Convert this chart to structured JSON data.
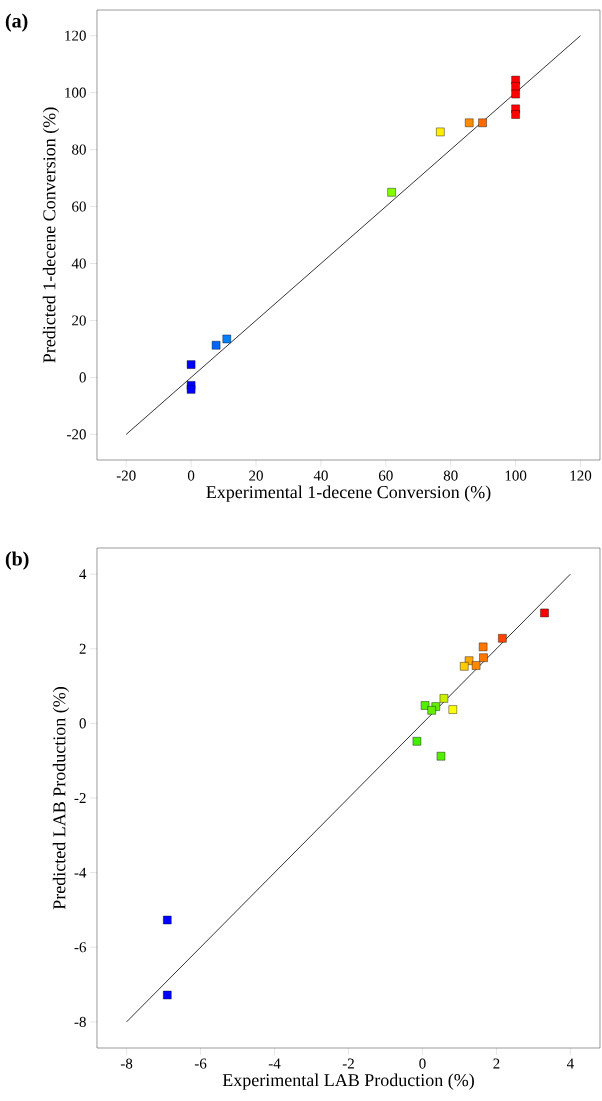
{
  "chart_data": [
    {
      "type": "scatter",
      "annotations": [
        "(a)"
      ],
      "xlabel": "Experimental 1-decene Conversion (%)",
      "ylabel": "Predicted 1-decene Conversion (%)",
      "xlim": [
        -29,
        126
      ],
      "ylim": [
        -29,
        129
      ],
      "xticks": [
        -20,
        0,
        20,
        40,
        60,
        80,
        100,
        120
      ],
      "yticks": [
        -20,
        0,
        20,
        40,
        60,
        80,
        100,
        120
      ],
      "series": [
        {
          "type": "scatter",
          "marker": "square",
          "x": [
            100,
            100,
            100,
            100,
            100,
            85.7,
            89.8,
            76.8,
            61.8,
            0,
            0,
            0,
            7.7,
            11
          ],
          "values": [
            104.4,
            102.2,
            99.5,
            94.3,
            92.3,
            89.4,
            89.4,
            86.2,
            65.0,
            4.5,
            -2.8,
            -4.2,
            11.3,
            13.5
          ],
          "colors": [
            "#ff0000",
            "#ff0000",
            "#ff0000",
            "#ff0000",
            "#ff0000",
            "#ff8c00",
            "#ff6a00",
            "#ffee00",
            "#80ff00",
            "#0000ff",
            "#0000ff",
            "#0000ff",
            "#0066ff",
            "#0080ff"
          ]
        },
        {
          "type": "line",
          "marker": "none",
          "color": "#000000",
          "x": [
            -20,
            120
          ],
          "values": [
            -20,
            120
          ]
        }
      ]
    },
    {
      "type": "scatter",
      "annotations": [
        "(b)"
      ],
      "xlabel": "Experimental LAB Production (%)",
      "ylabel": "Predicted LAB Production (%)",
      "xlim": [
        -8.8,
        4.8
      ],
      "ylim": [
        -8.7,
        4.7
      ],
      "xticks": [
        -8,
        -6,
        -4,
        -2,
        0,
        2,
        4
      ],
      "yticks": [
        -8,
        -6,
        -4,
        -2,
        0,
        2,
        4
      ],
      "series": [
        {
          "type": "scatter",
          "marker": "square",
          "x": [
            3.3,
            2.16,
            1.64,
            1.65,
            1.26,
            1.45,
            1.13,
            0.58,
            0.07,
            0.36,
            0.25,
            0.82,
            -0.15,
            0.5,
            -6.9,
            -6.9
          ],
          "values": [
            2.96,
            2.28,
            2.05,
            1.76,
            1.68,
            1.55,
            1.53,
            0.67,
            0.48,
            0.45,
            0.35,
            0.37,
            -0.48,
            -0.88,
            -5.27,
            -7.28
          ],
          "colors": [
            "#ff0000",
            "#ff4400",
            "#ff7700",
            "#ff7700",
            "#ffaa00",
            "#ff8800",
            "#ffcc00",
            "#ccee00",
            "#55ee00",
            "#66ee00",
            "#66ee00",
            "#ffff00",
            "#44ee00",
            "#55ee00",
            "#0000ff",
            "#0000ff"
          ]
        },
        {
          "type": "line",
          "marker": "none",
          "color": "#000000",
          "x": [
            -8,
            4
          ],
          "values": [
            -8,
            4
          ]
        }
      ]
    }
  ]
}
